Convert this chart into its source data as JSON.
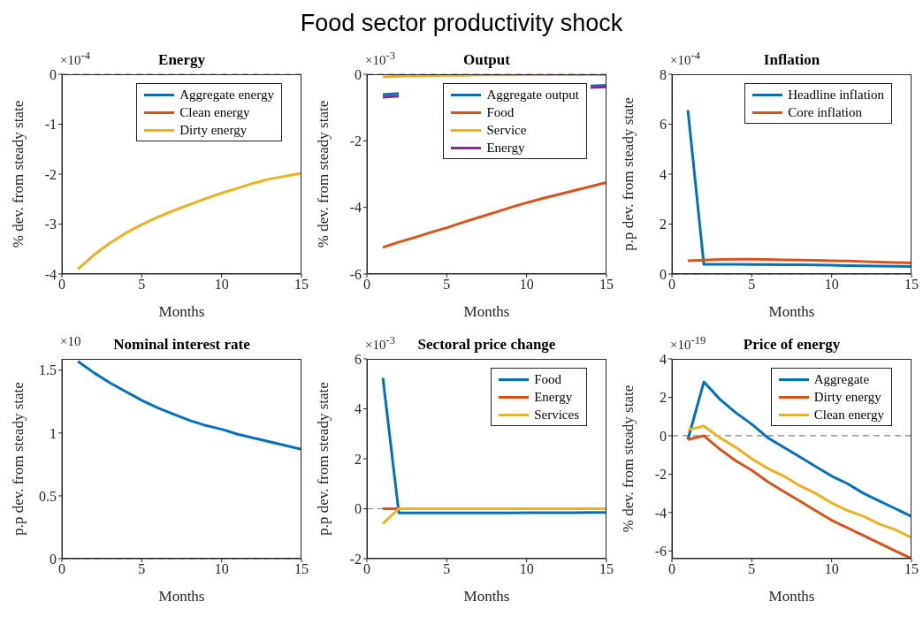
{
  "chart_data": [
    {
      "type": "other",
      "title": "Food sector productivity shock"
    },
    {
      "type": "line",
      "title": "Energy",
      "xlabel": "Months",
      "ylabel": "% dev. from steady state",
      "annotations": [
        "×10$^{-4}$"
      ],
      "x": [
        1,
        2,
        3,
        4,
        5,
        6,
        7,
        8,
        9,
        10,
        11,
        12,
        13,
        14,
        15
      ],
      "series": [
        {
          "name": "Aggregate energy",
          "color": "#0072bd",
          "values": [
            null,
            null,
            null,
            null,
            null,
            null,
            null,
            null,
            null,
            null,
            null,
            null,
            null,
            null,
            null
          ]
        },
        {
          "name": "Clean energy",
          "color": "#d95319",
          "values": [
            null,
            null,
            null,
            null,
            null,
            null,
            null,
            null,
            null,
            null,
            null,
            null,
            null,
            null,
            null
          ]
        },
        {
          "name": "Dirty energy",
          "color": "#edb120",
          "values": [
            -3.9,
            -3.62,
            -3.38,
            -3.18,
            -3.01,
            -2.86,
            -2.73,
            -2.61,
            -2.49,
            -2.38,
            -2.28,
            -2.18,
            -2.1,
            -2.04,
            -1.98
          ]
        }
      ],
      "xlim": [
        0,
        15
      ],
      "xticks": [
        0,
        5,
        10,
        15
      ],
      "ylim": [
        -4,
        0
      ],
      "yticks": [
        -4,
        -3,
        -2,
        -1,
        0
      ],
      "ref_lines": [
        {
          "axis": "y",
          "value": 0,
          "line_style": "dashed",
          "color": "#808080"
        }
      ],
      "legend": "top right"
    },
    {
      "type": "line",
      "title": "Output",
      "xlabel": "Months",
      "ylabel": "% dev. from steady state",
      "annotations": [
        "×10$^{-3}$"
      ],
      "x": [
        1,
        2,
        3,
        4,
        5,
        6,
        7,
        8,
        9,
        10,
        11,
        12,
        13,
        14,
        15
      ],
      "series": [
        {
          "name": "Aggregate output",
          "color": "#0072bd",
          "values": [
            -0.61,
            -0.58,
            null,
            null,
            null,
            null,
            null,
            null,
            null,
            null,
            null,
            null,
            null,
            -0.35,
            -0.33
          ]
        },
        {
          "name": "Food",
          "color": "#d95319",
          "values": [
            -5.2,
            -5.04,
            -4.9,
            -4.75,
            -4.61,
            -4.45,
            -4.3,
            -4.15,
            -4.0,
            -3.86,
            -3.73,
            -3.61,
            -3.49,
            -3.37,
            -3.25
          ]
        },
        {
          "name": "Service",
          "color": "#edb120",
          "values": [
            -0.08,
            -0.06,
            -0.05,
            -0.04,
            -0.03,
            -0.03,
            -0.02,
            -0.02,
            -0.02,
            -0.01,
            -0.01,
            -0.01,
            -0.01,
            -0.01,
            -0.01
          ]
        },
        {
          "name": "Energy",
          "color": "#7e2f8e",
          "values": [
            -0.69,
            -0.66,
            null,
            null,
            null,
            null,
            null,
            null,
            null,
            null,
            null,
            null,
            null,
            -0.4,
            -0.38
          ]
        }
      ],
      "xlim": [
        0,
        15
      ],
      "xticks": [
        0,
        5,
        10,
        15
      ],
      "ylim": [
        -6,
        0
      ],
      "yticks": [
        -6,
        -4,
        -2,
        0
      ],
      "ref_lines": [
        {
          "axis": "y",
          "value": 0,
          "line_style": "dashed",
          "color": "#808080"
        }
      ],
      "legend": "top right"
    },
    {
      "type": "line",
      "title": "Inflation",
      "xlabel": "Months",
      "ylabel": "p.p dev. from steady state",
      "annotations": [
        "×10$^{-4}$"
      ],
      "x": [
        1,
        2,
        3,
        4,
        5,
        6,
        7,
        8,
        9,
        10,
        11,
        12,
        13,
        14,
        15
      ],
      "series": [
        {
          "name": "Headline inflation",
          "color": "#0072bd",
          "values": [
            6.56,
            0.39,
            0.39,
            0.39,
            0.38,
            0.38,
            0.37,
            0.37,
            0.36,
            0.35,
            0.34,
            0.33,
            0.32,
            0.31,
            0.3
          ]
        },
        {
          "name": "Core inflation",
          "color": "#d95319",
          "values": [
            0.53,
            0.56,
            0.58,
            0.59,
            0.59,
            0.58,
            0.57,
            0.56,
            0.55,
            0.53,
            0.52,
            0.5,
            0.48,
            0.46,
            0.44
          ]
        }
      ],
      "xlim": [
        0,
        15
      ],
      "xticks": [
        0,
        5,
        10,
        15
      ],
      "ylim": [
        0,
        8
      ],
      "yticks": [
        0,
        2,
        4,
        6,
        8
      ],
      "ref_lines": [
        {
          "axis": "y",
          "value": 0,
          "line_style": "dashed",
          "color": "#808080"
        }
      ],
      "legend": "top right"
    },
    {
      "type": "line",
      "title": "Nominal interest rate",
      "xlabel": "Months",
      "ylabel": "p.p dev. from steady state",
      "annotations": [
        "×10"
      ],
      "x": [
        1,
        2,
        3,
        4,
        5,
        6,
        7,
        8,
        9,
        10,
        11,
        12,
        13,
        14,
        15
      ],
      "series": [
        {
          "color": "#0072bd",
          "values": [
            1.57,
            1.48,
            1.4,
            1.33,
            1.26,
            1.2,
            1.15,
            1.1,
            1.06,
            1.03,
            0.99,
            0.96,
            0.93,
            0.9,
            0.87
          ]
        }
      ],
      "xlim": [
        0,
        15
      ],
      "xticks": [
        0,
        5,
        10,
        15
      ],
      "ylim": [
        0,
        1.59
      ],
      "yticks": [
        0,
        0.5,
        1,
        1.5
      ],
      "ref_lines": [
        {
          "axis": "y",
          "value": 0,
          "line_style": "dashed",
          "color": "#808080"
        }
      ]
    },
    {
      "type": "line",
      "title": "Sectoral price change",
      "xlabel": "Months",
      "ylabel": "p.p dev. from steady state",
      "annotations": [
        "×10$^{-3}$"
      ],
      "x": [
        1,
        2,
        3,
        4,
        5,
        6,
        7,
        8,
        9,
        10,
        11,
        12,
        13,
        14,
        15
      ],
      "series": [
        {
          "name": "Food",
          "color": "#0072bd",
          "values": [
            5.24,
            -0.17,
            -0.17,
            -0.17,
            -0.17,
            -0.17,
            -0.17,
            -0.17,
            -0.17,
            -0.16,
            -0.16,
            -0.16,
            -0.16,
            -0.15,
            -0.15
          ]
        },
        {
          "name": "Energy",
          "color": "#d95319",
          "values": [
            0,
            0,
            null,
            null,
            null,
            null,
            null,
            null,
            null,
            null,
            null,
            null,
            null,
            null,
            null
          ]
        },
        {
          "name": "Services",
          "color": "#edb120",
          "values": [
            -0.6,
            0,
            0,
            0,
            0,
            0,
            0,
            0,
            0,
            0,
            0,
            0,
            0,
            0,
            0
          ]
        }
      ],
      "xlim": [
        0,
        15
      ],
      "xticks": [
        0,
        5,
        10,
        15
      ],
      "ylim": [
        -2,
        6
      ],
      "yticks": [
        -2,
        0,
        2,
        4,
        6
      ],
      "ref_lines": [
        {
          "axis": "y",
          "value": 0,
          "line_style": "dashed",
          "color": "#808080"
        }
      ],
      "legend": "top right"
    },
    {
      "type": "line",
      "title": "Price of energy",
      "xlabel": "Months",
      "ylabel": "% dev. from steady state",
      "annotations": [
        "×10$^{-19}$"
      ],
      "x": [
        1,
        2,
        3,
        4,
        5,
        6,
        7,
        8,
        9,
        10,
        11,
        12,
        13,
        14,
        15
      ],
      "series": [
        {
          "name": "Aggregate",
          "color": "#0072bd",
          "values": [
            -0.2,
            2.8,
            1.9,
            1.2,
            0.6,
            -0.1,
            -0.6,
            -1.1,
            -1.6,
            -2.1,
            -2.5,
            -3.0,
            -3.4,
            -3.8,
            -4.2
          ]
        },
        {
          "name": "Dirty energy",
          "color": "#d95319",
          "values": [
            -0.2,
            0.0,
            -0.7,
            -1.3,
            -1.8,
            -2.4,
            -2.9,
            -3.4,
            -3.9,
            -4.4,
            -4.8,
            -5.2,
            -5.6,
            -6.0,
            -6.4
          ]
        },
        {
          "name": "Clean energy",
          "color": "#edb120",
          "values": [
            0.3,
            0.5,
            -0.1,
            -0.6,
            -1.2,
            -1.7,
            -2.1,
            -2.6,
            -3.0,
            -3.5,
            -3.9,
            -4.2,
            -4.6,
            -4.9,
            -5.3
          ]
        }
      ],
      "xlim": [
        0,
        15
      ],
      "xticks": [
        0,
        5,
        10,
        15
      ],
      "ylim": [
        -6.4,
        4
      ],
      "yticks": [
        -6,
        -4,
        -2,
        0,
        2,
        4
      ],
      "ref_lines": [
        {
          "axis": "y",
          "value": 0,
          "line_style": "dashed",
          "color": "#808080"
        }
      ],
      "legend": "top right"
    }
  ]
}
